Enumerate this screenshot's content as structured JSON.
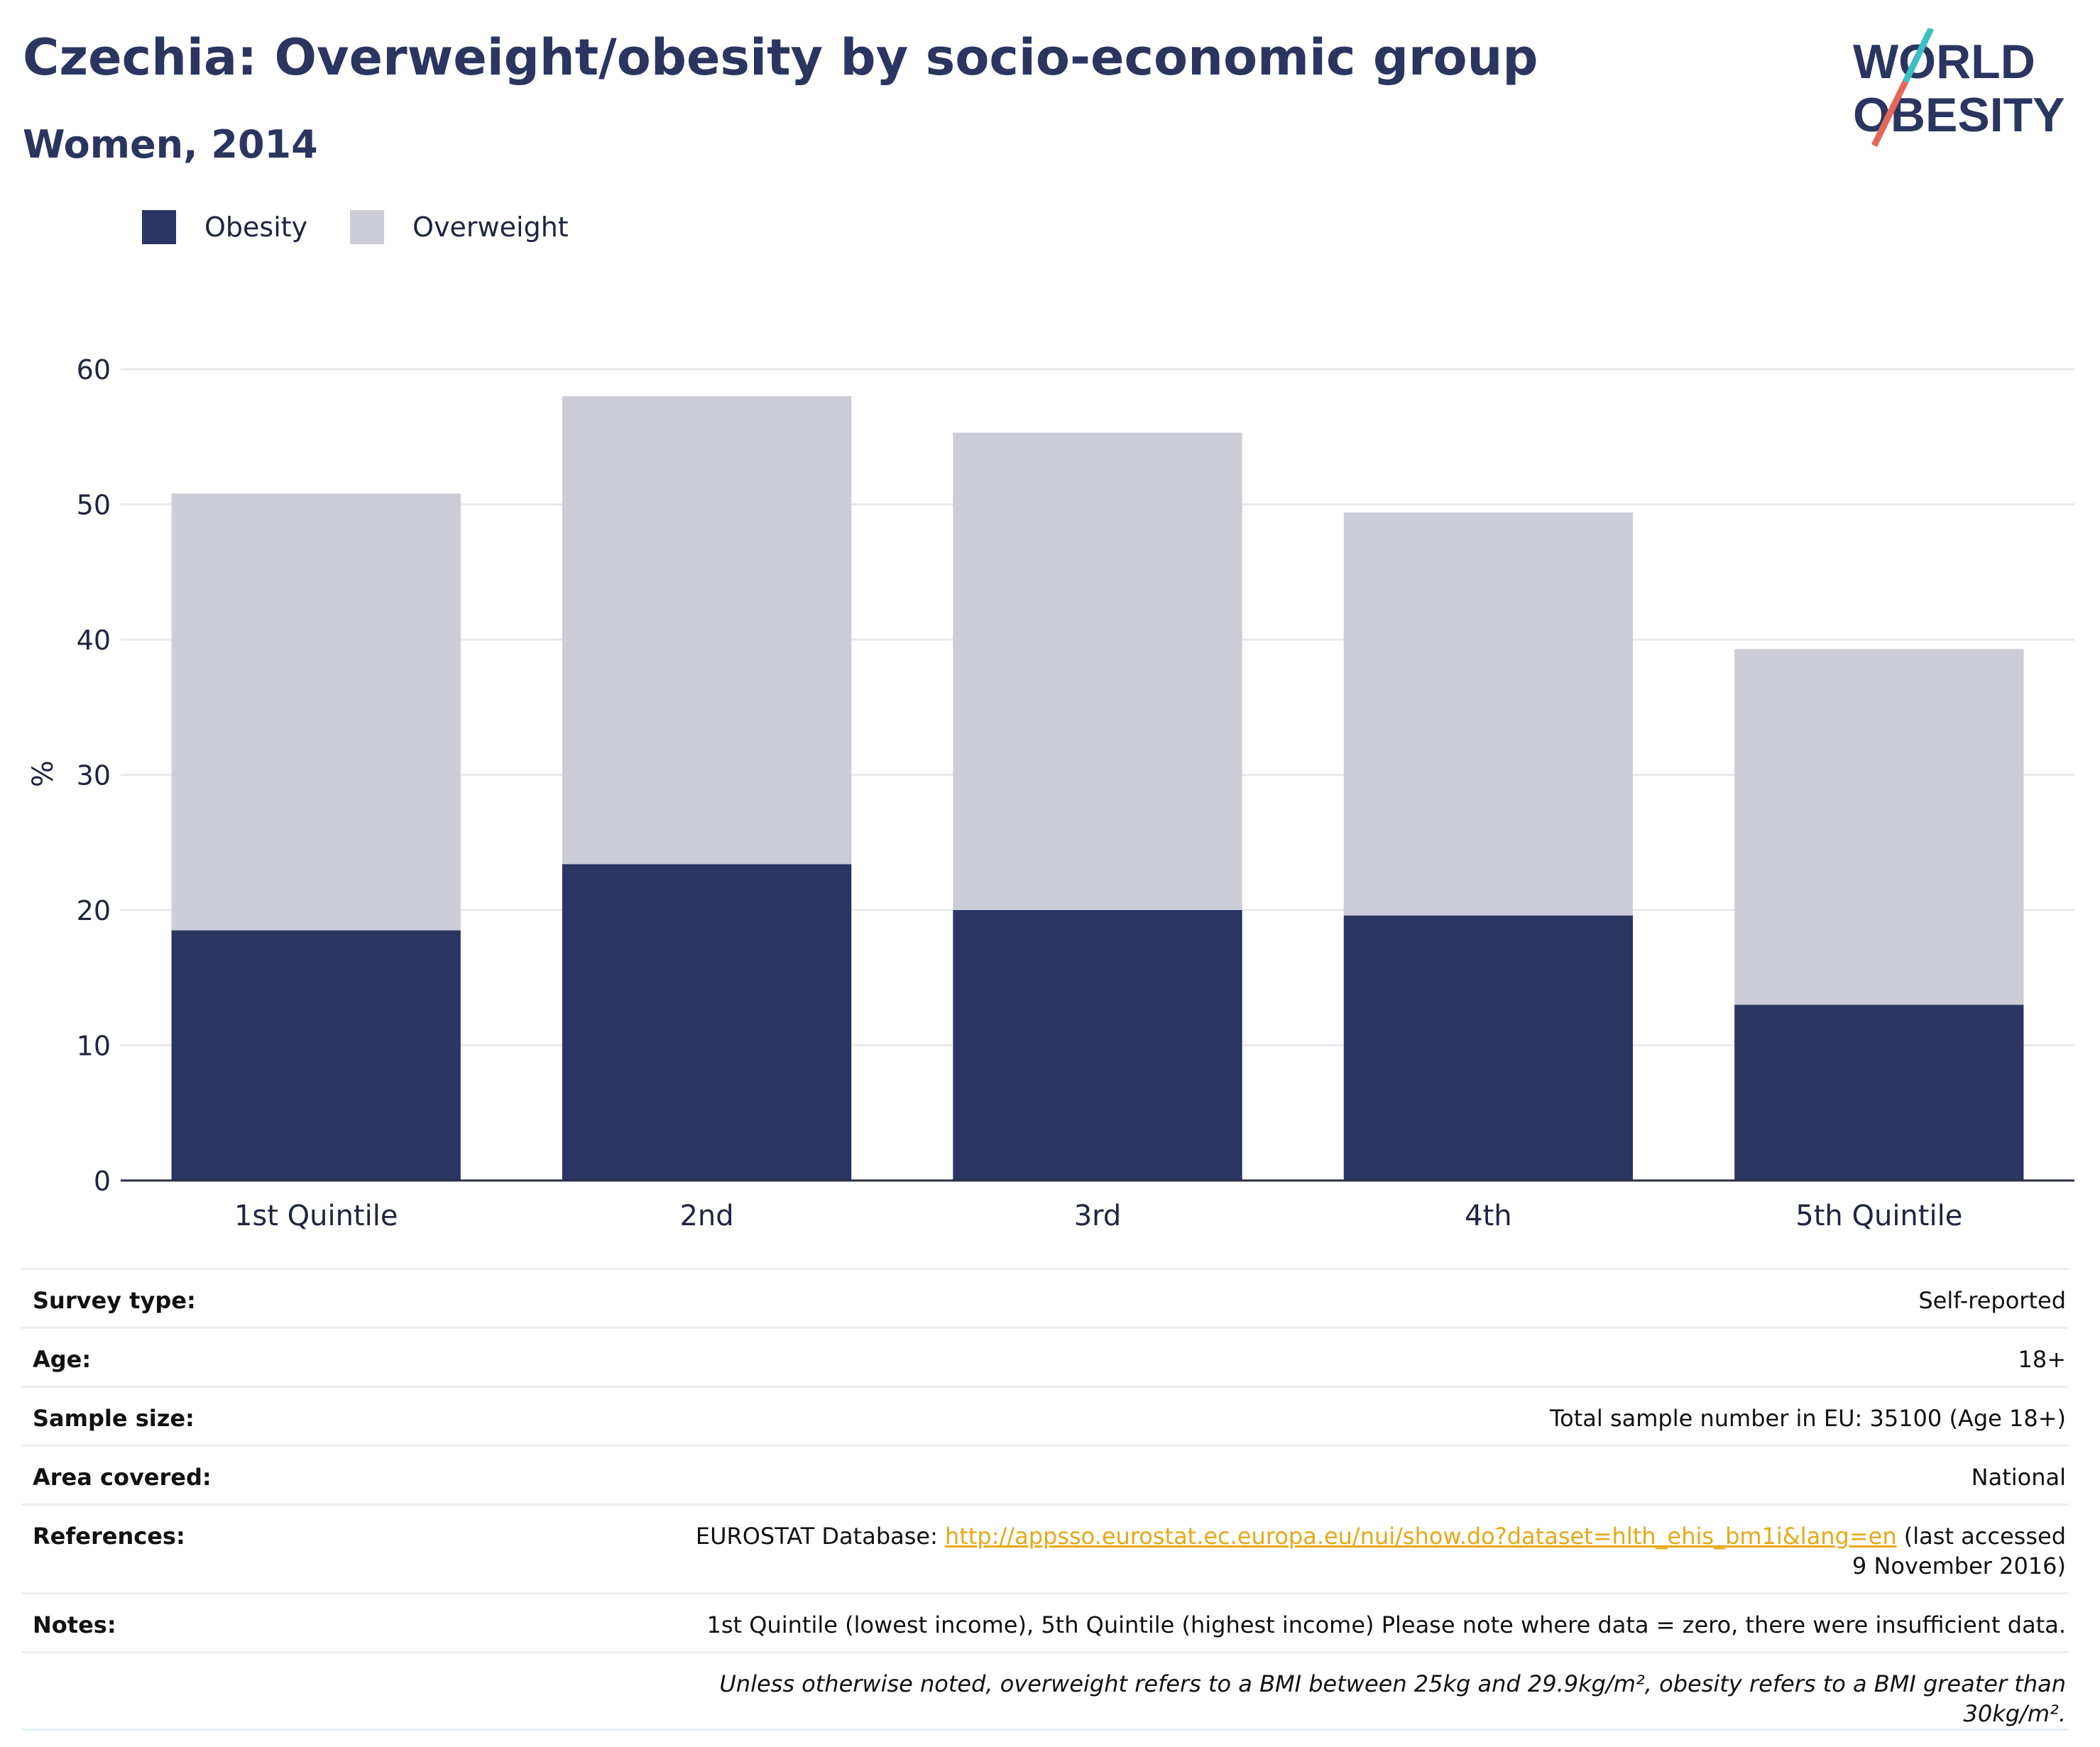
{
  "header": {
    "title": "Czechia: Overweight/obesity by socio-economic group",
    "subtitle": "Women, 2014"
  },
  "logo": {
    "line1": "WORLD",
    "line2": "OBESITY"
  },
  "colors": {
    "obesity": "#2a3563",
    "overweight": "#cbccd8",
    "accent_teal": "#3bbfc4",
    "accent_coral": "#e5675a",
    "link": "#e6a817"
  },
  "chart_data": {
    "type": "bar",
    "stacked": true,
    "categories": [
      "1st Quintile",
      "2nd",
      "3rd",
      "4th",
      "5th Quintile"
    ],
    "series": [
      {
        "name": "Obesity",
        "values": [
          18.5,
          23.4,
          20.0,
          19.6,
          13.0
        ]
      },
      {
        "name": "Overweight",
        "values": [
          32.3,
          34.6,
          35.3,
          29.8,
          26.3
        ]
      }
    ],
    "totals": [
      50.8,
      58.0,
      55.3,
      49.4,
      39.3
    ],
    "ylabel": "%",
    "ylim": [
      0,
      60
    ],
    "yticks": [
      0,
      10,
      20,
      30,
      40,
      50,
      60
    ],
    "grid": true,
    "legend_position": "top-left"
  },
  "info": {
    "rows": [
      {
        "label": "Survey type:",
        "value": "Self-reported"
      },
      {
        "label": "Age:",
        "value": "18+"
      },
      {
        "label": "Sample size:",
        "value": "Total sample number in EU: 35100 (Age 18+)"
      },
      {
        "label": "Area covered:",
        "value": "National"
      }
    ],
    "references": {
      "label": "References:",
      "prefix": "EUROSTAT Database: ",
      "link": "http://appsso.eurostat.ec.europa.eu/nui/show.do?dataset=hlth_ehis_bm1i&lang=en",
      "suffix": " (last accessed 9 November 2016)"
    },
    "notes": {
      "label": "Notes:",
      "value": "1st Quintile (lowest income), 5th Quintile (highest income) Please note where data = zero, there were insufficient data."
    },
    "footnote": "Unless otherwise noted, overweight refers to a BMI between 25kg and 29.9kg/m², obesity refers to a BMI greater than 30kg/m²."
  }
}
